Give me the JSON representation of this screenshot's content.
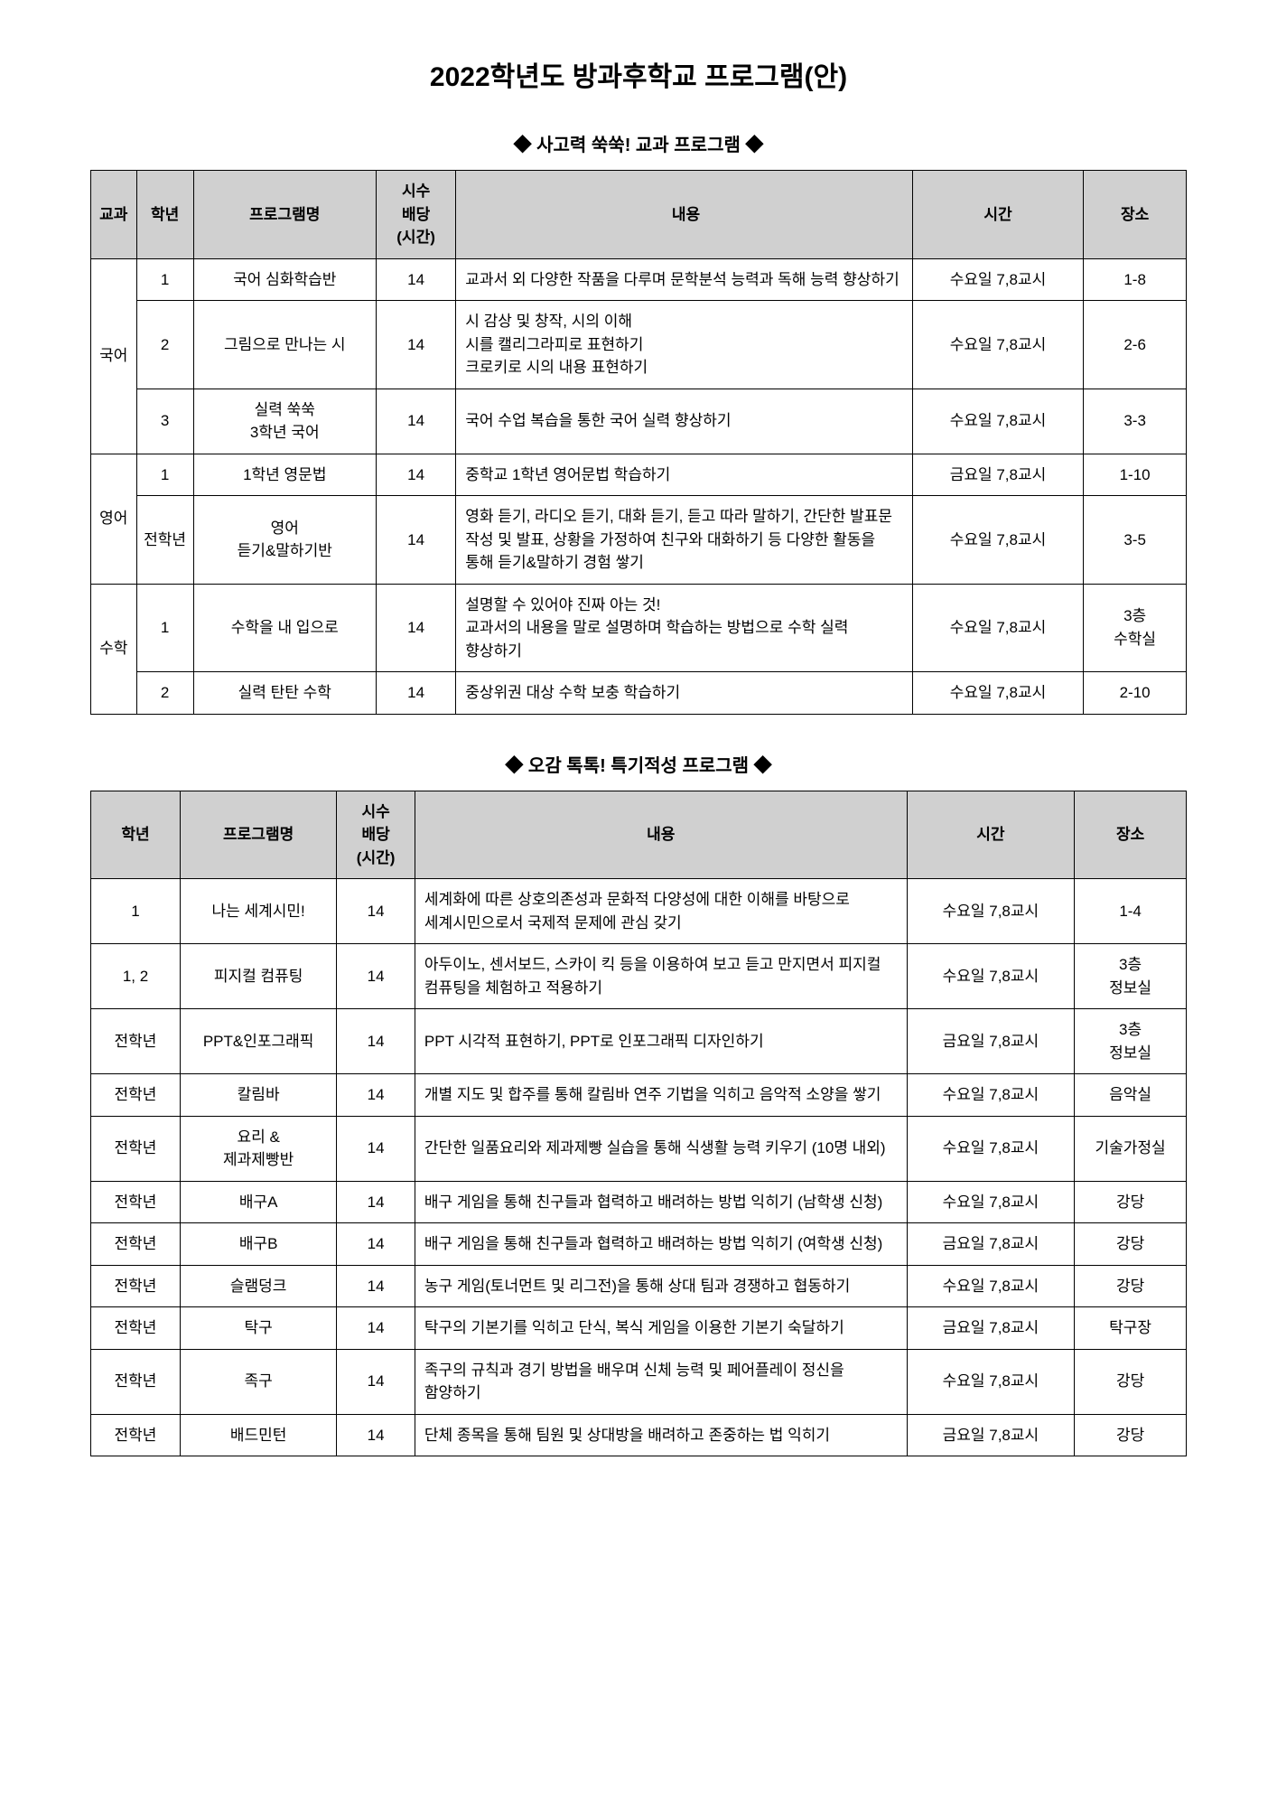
{
  "page_title": "2022학년도 방과후학교 프로그램(안)",
  "section1_title": "◆ 사고력 쑥쑥! 교과 프로그램 ◆",
  "section2_title": "◆ 오감 톡톡! 특기적성 프로그램 ◆",
  "table1": {
    "headers": {
      "subject": "교과",
      "grade": "학년",
      "program": "프로그램명",
      "hours": "시수\n배당\n(시간)",
      "content": "내용",
      "time": "시간",
      "place": "장소"
    },
    "subjects": {
      "korean": "국어",
      "english": "영어",
      "math": "수학"
    },
    "rows": [
      {
        "grade": "1",
        "program": "국어 심화학습반",
        "hours": "14",
        "content": "교과서 외 다양한 작품을 다루며 문학분석 능력과 독해 능력 향상하기",
        "time": "수요일 7,8교시",
        "place": "1-8"
      },
      {
        "grade": "2",
        "program": "그림으로 만나는 시",
        "hours": "14",
        "content": "시 감상 및 창작, 시의 이해\n시를 캘리그라피로 표현하기\n크로키로 시의 내용 표현하기",
        "time": "수요일 7,8교시",
        "place": "2-6"
      },
      {
        "grade": "3",
        "program": "실력 쑥쑥\n3학년 국어",
        "hours": "14",
        "content": "국어 수업 복습을 통한 국어 실력 향상하기",
        "time": "수요일 7,8교시",
        "place": "3-3"
      },
      {
        "grade": "1",
        "program": "1학년 영문법",
        "hours": "14",
        "content": "중학교 1학년 영어문법 학습하기",
        "time": "금요일 7,8교시",
        "place": "1-10"
      },
      {
        "grade": "전학년",
        "program": "영어\n듣기&말하기반",
        "hours": "14",
        "content": "영화 듣기, 라디오 듣기, 대화 듣기, 듣고 따라 말하기, 간단한 발표문 작성 및 발표, 상황을 가정하여 친구와 대화하기 등 다양한 활동을 통해 듣기&말하기 경험 쌓기",
        "time": "수요일 7,8교시",
        "place": "3-5"
      },
      {
        "grade": "1",
        "program": "수학을 내 입으로",
        "hours": "14",
        "content": "설명할 수 있어야 진짜 아는 것!\n교과서의 내용을 말로 설명하며 학습하는 방법으로 수학 실력 향상하기",
        "time": "수요일 7,8교시",
        "place": "3층\n수학실"
      },
      {
        "grade": "2",
        "program": "실력 탄탄 수학",
        "hours": "14",
        "content": "중상위권 대상 수학 보충 학습하기",
        "time": "수요일 7,8교시",
        "place": "2-10"
      }
    ]
  },
  "table2": {
    "headers": {
      "grade": "학년",
      "program": "프로그램명",
      "hours": "시수\n배당\n(시간)",
      "content": "내용",
      "time": "시간",
      "place": "장소"
    },
    "rows": [
      {
        "grade": "1",
        "program": "나는 세계시민!",
        "hours": "14",
        "content": "세계화에 따른 상호의존성과 문화적 다양성에 대한 이해를 바탕으로 세계시민으로서 국제적 문제에 관심 갖기",
        "time": "수요일 7,8교시",
        "place": "1-4"
      },
      {
        "grade": "1, 2",
        "program": "피지컬 컴퓨팅",
        "hours": "14",
        "content": "아두이노, 센서보드, 스카이 킥 등을 이용하여 보고 듣고 만지면서 피지컬 컴퓨팅을 체험하고 적용하기",
        "time": "수요일 7,8교시",
        "place": "3층\n정보실"
      },
      {
        "grade": "전학년",
        "program": "PPT&인포그래픽",
        "hours": "14",
        "content": "PPT 시각적 표현하기, PPT로 인포그래픽 디자인하기",
        "time": "금요일 7,8교시",
        "place": "3층\n정보실"
      },
      {
        "grade": "전학년",
        "program": "칼림바",
        "hours": "14",
        "content": "개별 지도 및 합주를 통해 칼림바 연주 기법을 익히고 음악적 소양을 쌓기",
        "time": "수요일 7,8교시",
        "place": "음악실"
      },
      {
        "grade": "전학년",
        "program": "요리 &\n제과제빵반",
        "hours": "14",
        "content": "간단한 일품요리와 제과제빵 실습을 통해 식생활 능력 키우기 (10명 내외)",
        "time": "수요일 7,8교시",
        "place": "기술가정실"
      },
      {
        "grade": "전학년",
        "program": "배구A",
        "hours": "14",
        "content": "배구 게임을 통해 친구들과 협력하고 배려하는 방법 익히기 (남학생 신청)",
        "time": "수요일 7,8교시",
        "place": "강당"
      },
      {
        "grade": "전학년",
        "program": "배구B",
        "hours": "14",
        "content": "배구 게임을 통해 친구들과 협력하고 배려하는 방법 익히기 (여학생 신청)",
        "time": "금요일 7,8교시",
        "place": "강당"
      },
      {
        "grade": "전학년",
        "program": "슬램덩크",
        "hours": "14",
        "content": "농구 게임(토너먼트 및 리그전)을 통해 상대 팀과 경쟁하고 협동하기",
        "time": "수요일 7,8교시",
        "place": "강당"
      },
      {
        "grade": "전학년",
        "program": "탁구",
        "hours": "14",
        "content": "탁구의 기본기를 익히고 단식, 복식 게임을 이용한 기본기 숙달하기",
        "time": "금요일 7,8교시",
        "place": "탁구장"
      },
      {
        "grade": "전학년",
        "program": "족구",
        "hours": "14",
        "content": "족구의 규칙과 경기 방법을 배우며 신체 능력 및 페어플레이 정신을 함양하기",
        "time": "수요일 7,8교시",
        "place": "강당"
      },
      {
        "grade": "전학년",
        "program": "배드민턴",
        "hours": "14",
        "content": "단체 종목을 통해 팀원 및 상대방을 배려하고 존중하는 법 익히기",
        "time": "금요일 7,8교시",
        "place": "강당"
      }
    ]
  }
}
